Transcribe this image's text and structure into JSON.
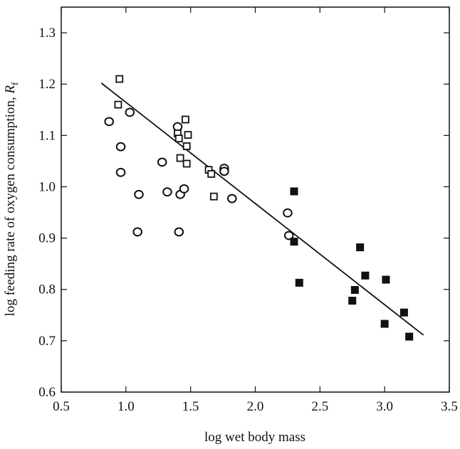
{
  "chart_data": {
    "type": "scatter",
    "xlabel": "log wet body mass",
    "ylabel_main": "log feeding rate of oxygen consumption, ",
    "ylabel_symbol": "R",
    "ylabel_subscript": "f",
    "xlim": [
      0.5,
      3.5
    ],
    "ylim": [
      0.6,
      1.35
    ],
    "x_ticks": [
      "0.5",
      "1.0",
      "1.5",
      "2.0",
      "2.5",
      "3.0",
      "3.5"
    ],
    "y_ticks": [
      "0.6",
      "0.7",
      "0.8",
      "0.9",
      "1.0",
      "1.1",
      "1.2",
      "1.3"
    ],
    "grid": false,
    "series": [
      {
        "marker": "open-circle",
        "points": [
          [
            0.87,
            1.127
          ],
          [
            0.96,
            1.078
          ],
          [
            0.96,
            1.028
          ],
          [
            1.03,
            1.145
          ],
          [
            1.1,
            0.985
          ],
          [
            1.09,
            0.912
          ],
          [
            1.28,
            1.048
          ],
          [
            1.32,
            0.99
          ],
          [
            1.4,
            1.117
          ],
          [
            1.41,
            0.912
          ],
          [
            1.42,
            0.985
          ],
          [
            1.45,
            0.996
          ],
          [
            1.76,
            1.036
          ],
          [
            1.76,
            1.03
          ],
          [
            1.82,
            0.977
          ],
          [
            2.25,
            0.949
          ],
          [
            2.26,
            0.905
          ]
        ]
      },
      {
        "marker": "open-square",
        "points": [
          [
            0.95,
            1.21
          ],
          [
            0.94,
            1.16
          ],
          [
            1.4,
            1.104
          ],
          [
            1.41,
            1.094
          ],
          [
            1.42,
            1.056
          ],
          [
            1.46,
            1.131
          ],
          [
            1.47,
            1.079
          ],
          [
            1.48,
            1.101
          ],
          [
            1.47,
            1.045
          ],
          [
            1.64,
            1.033
          ],
          [
            1.66,
            1.025
          ],
          [
            1.68,
            0.981
          ]
        ]
      },
      {
        "marker": "filled-square",
        "points": [
          [
            2.3,
            0.991
          ],
          [
            2.3,
            0.893
          ],
          [
            2.34,
            0.813
          ],
          [
            2.75,
            0.778
          ],
          [
            2.77,
            0.799
          ],
          [
            2.81,
            0.882
          ],
          [
            2.85,
            0.827
          ],
          [
            3.0,
            0.733
          ],
          [
            3.01,
            0.819
          ],
          [
            3.15,
            0.755
          ],
          [
            3.19,
            0.708
          ]
        ]
      }
    ],
    "fit_line": {
      "x": [
        0.81,
        3.3
      ],
      "y": [
        1.202,
        0.711
      ]
    }
  }
}
